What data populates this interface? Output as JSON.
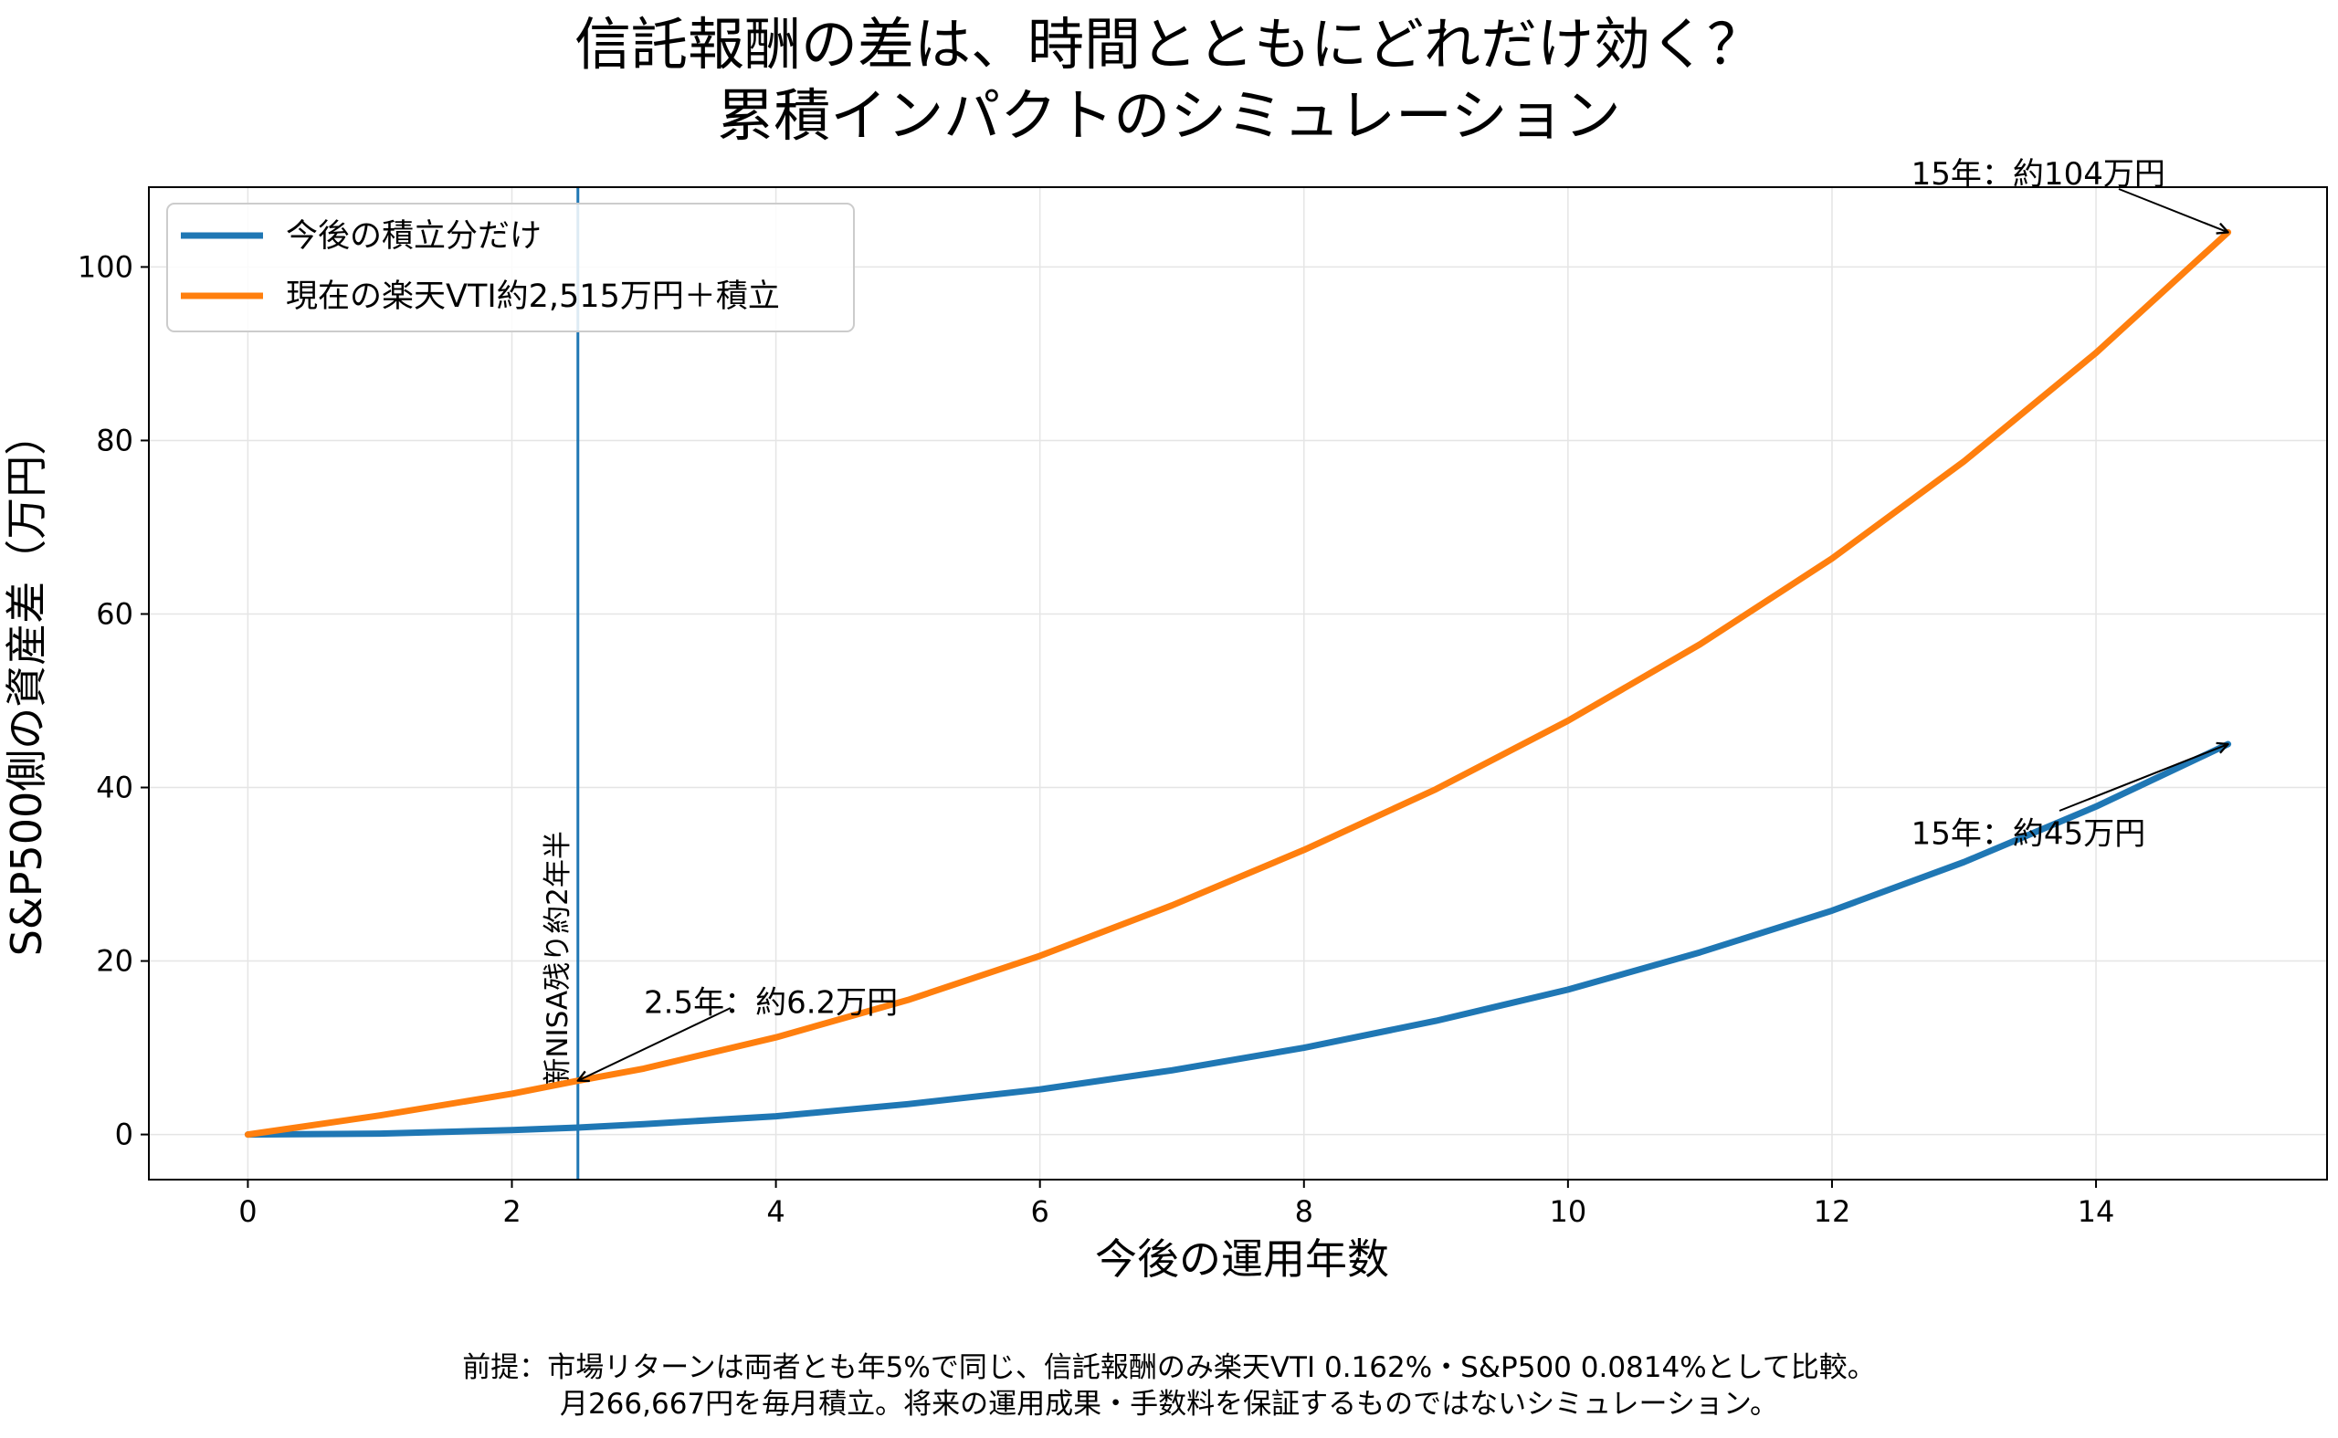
{
  "chart_data": {
    "type": "line",
    "title": [
      "信託報酬の差は、時間とともにどれだけ効く？",
      "累積インパクトのシミュレーション"
    ],
    "xlabel": "今後の運用年数",
    "ylabel": "S&P500側の資産差（万円）",
    "xlim": [
      -0.75,
      15.75
    ],
    "ylim": [
      -5.2,
      109.2
    ],
    "xticks": [
      0,
      2,
      4,
      6,
      8,
      10,
      12,
      14
    ],
    "yticks": [
      0,
      20,
      40,
      60,
      80,
      100
    ],
    "grid": true,
    "legend_position": "top-left",
    "series": [
      {
        "name": "今後の積立分だけ",
        "color": "#1f77b4",
        "x": [
          0,
          1,
          2,
          2.5,
          3,
          4,
          5,
          6,
          7,
          8,
          9,
          10,
          11,
          12,
          13,
          14,
          15
        ],
        "values": [
          0,
          0.1,
          0.5,
          0.8,
          1.2,
          2.1,
          3.5,
          5.2,
          7.4,
          10.0,
          13.1,
          16.7,
          21.0,
          25.8,
          31.4,
          37.8,
          45.0
        ]
      },
      {
        "name": "現在の楽天VTI約2,515万円＋積立",
        "color": "#ff7f0e",
        "x": [
          0,
          1,
          2,
          2.5,
          3,
          4,
          5,
          6,
          7,
          8,
          9,
          10,
          11,
          12,
          13,
          14,
          15
        ],
        "values": [
          0,
          2.2,
          4.7,
          6.2,
          7.6,
          11.2,
          15.5,
          20.6,
          26.4,
          32.8,
          39.8,
          47.7,
          56.5,
          66.4,
          77.6,
          90.1,
          104.0
        ]
      }
    ],
    "vline": {
      "x": 2.5,
      "label": "新NISA残り約2年半",
      "color": "#1f77b4"
    },
    "annotations": [
      {
        "text": "2.5年：約6.2万円",
        "point": [
          2.5,
          6.2
        ],
        "text_pos": [
          3.0,
          14.0
        ]
      },
      {
        "text": "15年：約104万円",
        "point": [
          15,
          104.0
        ],
        "text_pos": [
          12.6,
          109.5
        ]
      },
      {
        "text": "15年：約45万円",
        "point": [
          15,
          45.0
        ],
        "text_pos": [
          12.6,
          33.5
        ]
      }
    ],
    "footnote": [
      "前提：市場リターンは両者とも年5%で同じ、信託報酬のみ楽天VTI 0.162%・S&P500 0.0814%として比較。",
      "月266,667円を毎月積立。将来の運用成果・手数料を保証するものではないシミュレーション。"
    ]
  }
}
